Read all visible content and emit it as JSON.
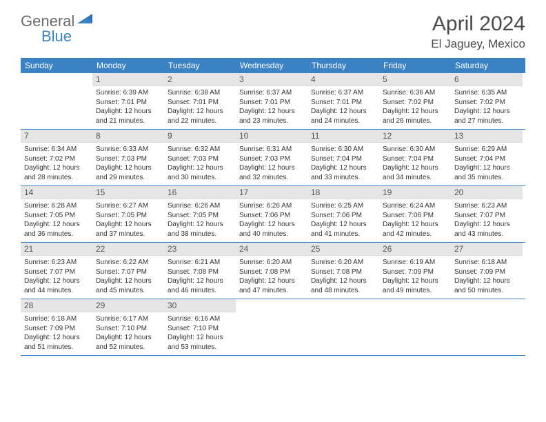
{
  "brand": {
    "text1": "General",
    "text2": "Blue"
  },
  "title": "April 2024",
  "location": "El Jaguey, Mexico",
  "colors": {
    "header_bg": "#3b82c4",
    "header_text": "#ffffff",
    "daynum_bg": "#e5e5e5",
    "body_text": "#333333",
    "title_text": "#4a4a4a",
    "logo_gray": "#6b6b6b"
  },
  "dayNames": [
    "Sunday",
    "Monday",
    "Tuesday",
    "Wednesday",
    "Thursday",
    "Friday",
    "Saturday"
  ],
  "weeks": [
    [
      {
        "n": "",
        "sr": "",
        "ss": "",
        "dl": ""
      },
      {
        "n": "1",
        "sr": "Sunrise: 6:39 AM",
        "ss": "Sunset: 7:01 PM",
        "dl": "Daylight: 12 hours and 21 minutes."
      },
      {
        "n": "2",
        "sr": "Sunrise: 6:38 AM",
        "ss": "Sunset: 7:01 PM",
        "dl": "Daylight: 12 hours and 22 minutes."
      },
      {
        "n": "3",
        "sr": "Sunrise: 6:37 AM",
        "ss": "Sunset: 7:01 PM",
        "dl": "Daylight: 12 hours and 23 minutes."
      },
      {
        "n": "4",
        "sr": "Sunrise: 6:37 AM",
        "ss": "Sunset: 7:01 PM",
        "dl": "Daylight: 12 hours and 24 minutes."
      },
      {
        "n": "5",
        "sr": "Sunrise: 6:36 AM",
        "ss": "Sunset: 7:02 PM",
        "dl": "Daylight: 12 hours and 26 minutes."
      },
      {
        "n": "6",
        "sr": "Sunrise: 6:35 AM",
        "ss": "Sunset: 7:02 PM",
        "dl": "Daylight: 12 hours and 27 minutes."
      }
    ],
    [
      {
        "n": "7",
        "sr": "Sunrise: 6:34 AM",
        "ss": "Sunset: 7:02 PM",
        "dl": "Daylight: 12 hours and 28 minutes."
      },
      {
        "n": "8",
        "sr": "Sunrise: 6:33 AM",
        "ss": "Sunset: 7:03 PM",
        "dl": "Daylight: 12 hours and 29 minutes."
      },
      {
        "n": "9",
        "sr": "Sunrise: 6:32 AM",
        "ss": "Sunset: 7:03 PM",
        "dl": "Daylight: 12 hours and 30 minutes."
      },
      {
        "n": "10",
        "sr": "Sunrise: 6:31 AM",
        "ss": "Sunset: 7:03 PM",
        "dl": "Daylight: 12 hours and 32 minutes."
      },
      {
        "n": "11",
        "sr": "Sunrise: 6:30 AM",
        "ss": "Sunset: 7:04 PM",
        "dl": "Daylight: 12 hours and 33 minutes."
      },
      {
        "n": "12",
        "sr": "Sunrise: 6:30 AM",
        "ss": "Sunset: 7:04 PM",
        "dl": "Daylight: 12 hours and 34 minutes."
      },
      {
        "n": "13",
        "sr": "Sunrise: 6:29 AM",
        "ss": "Sunset: 7:04 PM",
        "dl": "Daylight: 12 hours and 35 minutes."
      }
    ],
    [
      {
        "n": "14",
        "sr": "Sunrise: 6:28 AM",
        "ss": "Sunset: 7:05 PM",
        "dl": "Daylight: 12 hours and 36 minutes."
      },
      {
        "n": "15",
        "sr": "Sunrise: 6:27 AM",
        "ss": "Sunset: 7:05 PM",
        "dl": "Daylight: 12 hours and 37 minutes."
      },
      {
        "n": "16",
        "sr": "Sunrise: 6:26 AM",
        "ss": "Sunset: 7:05 PM",
        "dl": "Daylight: 12 hours and 38 minutes."
      },
      {
        "n": "17",
        "sr": "Sunrise: 6:26 AM",
        "ss": "Sunset: 7:06 PM",
        "dl": "Daylight: 12 hours and 40 minutes."
      },
      {
        "n": "18",
        "sr": "Sunrise: 6:25 AM",
        "ss": "Sunset: 7:06 PM",
        "dl": "Daylight: 12 hours and 41 minutes."
      },
      {
        "n": "19",
        "sr": "Sunrise: 6:24 AM",
        "ss": "Sunset: 7:06 PM",
        "dl": "Daylight: 12 hours and 42 minutes."
      },
      {
        "n": "20",
        "sr": "Sunrise: 6:23 AM",
        "ss": "Sunset: 7:07 PM",
        "dl": "Daylight: 12 hours and 43 minutes."
      }
    ],
    [
      {
        "n": "21",
        "sr": "Sunrise: 6:23 AM",
        "ss": "Sunset: 7:07 PM",
        "dl": "Daylight: 12 hours and 44 minutes."
      },
      {
        "n": "22",
        "sr": "Sunrise: 6:22 AM",
        "ss": "Sunset: 7:07 PM",
        "dl": "Daylight: 12 hours and 45 minutes."
      },
      {
        "n": "23",
        "sr": "Sunrise: 6:21 AM",
        "ss": "Sunset: 7:08 PM",
        "dl": "Daylight: 12 hours and 46 minutes."
      },
      {
        "n": "24",
        "sr": "Sunrise: 6:20 AM",
        "ss": "Sunset: 7:08 PM",
        "dl": "Daylight: 12 hours and 47 minutes."
      },
      {
        "n": "25",
        "sr": "Sunrise: 6:20 AM",
        "ss": "Sunset: 7:08 PM",
        "dl": "Daylight: 12 hours and 48 minutes."
      },
      {
        "n": "26",
        "sr": "Sunrise: 6:19 AM",
        "ss": "Sunset: 7:09 PM",
        "dl": "Daylight: 12 hours and 49 minutes."
      },
      {
        "n": "27",
        "sr": "Sunrise: 6:18 AM",
        "ss": "Sunset: 7:09 PM",
        "dl": "Daylight: 12 hours and 50 minutes."
      }
    ],
    [
      {
        "n": "28",
        "sr": "Sunrise: 6:18 AM",
        "ss": "Sunset: 7:09 PM",
        "dl": "Daylight: 12 hours and 51 minutes."
      },
      {
        "n": "29",
        "sr": "Sunrise: 6:17 AM",
        "ss": "Sunset: 7:10 PM",
        "dl": "Daylight: 12 hours and 52 minutes."
      },
      {
        "n": "30",
        "sr": "Sunrise: 6:16 AM",
        "ss": "Sunset: 7:10 PM",
        "dl": "Daylight: 12 hours and 53 minutes."
      },
      {
        "n": "",
        "sr": "",
        "ss": "",
        "dl": ""
      },
      {
        "n": "",
        "sr": "",
        "ss": "",
        "dl": ""
      },
      {
        "n": "",
        "sr": "",
        "ss": "",
        "dl": ""
      },
      {
        "n": "",
        "sr": "",
        "ss": "",
        "dl": ""
      }
    ]
  ]
}
